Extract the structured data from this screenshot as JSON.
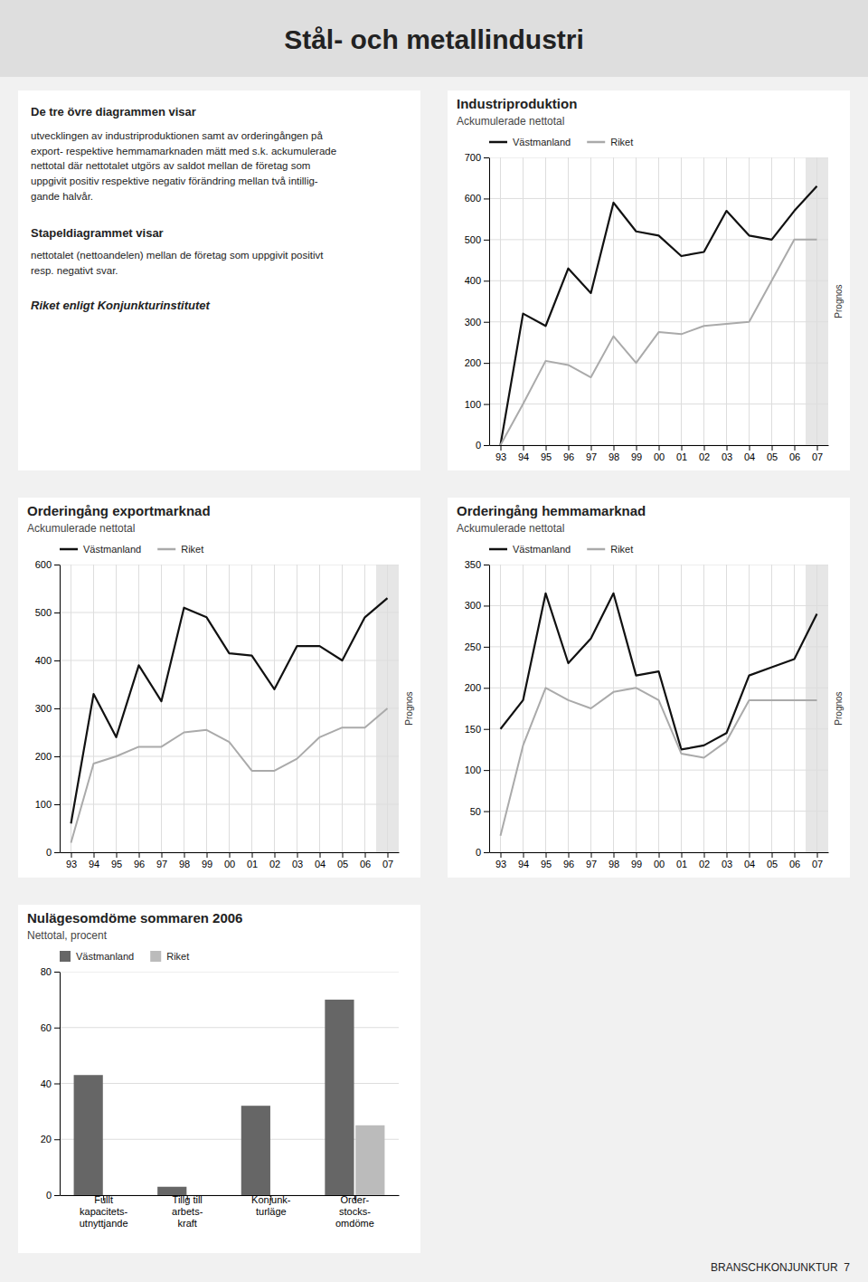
{
  "title": "Stål- och metallindustri",
  "annotations": [
    "De tre övre diagrammen visar",
    "utvecklingen av industriproduktionen samt av orderingången på\nexport- respektive hemmamarknaden mätt med s.k. ackumulerade\nnettotal där nettotalet utgörs av saldot mellan de företag som\nuppgivit positiv respektive negativ förändring mellan två intillig-\ngande halvår.",
    "Stapeldiagrammet visar",
    "nettotalet (nettoandelen) mellan de företag som uppgivit positivt\nresp. negativt svar.",
    "Riket enligt Konjunkturinstitutet",
    "BRANSCHKONJUNKTUR  7"
  ],
  "chart_data": [
    {
      "type": "line",
      "title": "Industriproduktion",
      "subtitle": "Ackumulerade nettotal",
      "categories": [
        "93",
        "94",
        "95",
        "96",
        "97",
        "98",
        "99",
        "00",
        "01",
        "02",
        "03",
        "04",
        "05",
        "06",
        "07"
      ],
      "ylim": [
        0,
        700
      ],
      "yticks": [
        0,
        100,
        200,
        300,
        400,
        500,
        600,
        700
      ],
      "grid": true,
      "legend": "upper left",
      "series": [
        {
          "name": "Västmanland",
          "color": "#111111",
          "values": [
            0,
            320,
            290,
            430,
            370,
            590,
            520,
            510,
            460,
            470,
            570,
            510,
            500,
            570,
            630
          ]
        },
        {
          "name": "Riket",
          "color": "#aaaaaa",
          "values": [
            0,
            100,
            205,
            195,
            165,
            265,
            200,
            275,
            270,
            290,
            295,
            300,
            400,
            500,
            500
          ]
        }
      ],
      "annotations": [
        {
          "text": "Prognos",
          "x": "07"
        }
      ]
    },
    {
      "type": "line",
      "title": "Orderingång exportmarknad",
      "subtitle": "Ackumulerade nettotal",
      "categories": [
        "93",
        "94",
        "95",
        "96",
        "97",
        "98",
        "99",
        "00",
        "01",
        "02",
        "03",
        "04",
        "05",
        "06",
        "07"
      ],
      "ylim": [
        0,
        600
      ],
      "yticks": [
        0,
        100,
        200,
        300,
        400,
        500,
        600
      ],
      "grid": true,
      "legend": "upper left",
      "series": [
        {
          "name": "Västmanland",
          "color": "#111111",
          "values": [
            60,
            330,
            240,
            390,
            315,
            510,
            490,
            415,
            410,
            340,
            430,
            430,
            400,
            490,
            530
          ]
        },
        {
          "name": "Riket",
          "color": "#aaaaaa",
          "values": [
            20,
            185,
            200,
            220,
            220,
            250,
            255,
            230,
            170,
            170,
            195,
            240,
            260,
            260,
            300
          ]
        }
      ],
      "annotations": [
        {
          "text": "Prognos",
          "x": "07"
        }
      ]
    },
    {
      "type": "line",
      "title": "Orderingång hemmamarknad",
      "subtitle": "Ackumulerade nettotal",
      "categories": [
        "93",
        "94",
        "95",
        "96",
        "97",
        "98",
        "99",
        "00",
        "01",
        "02",
        "03",
        "04",
        "05",
        "06",
        "07"
      ],
      "ylim": [
        0,
        350
      ],
      "yticks": [
        0,
        50,
        100,
        150,
        200,
        250,
        300,
        350
      ],
      "grid": true,
      "legend": "upper left",
      "series": [
        {
          "name": "Västmanland",
          "color": "#111111",
          "values": [
            150,
            185,
            315,
            230,
            260,
            315,
            215,
            220,
            125,
            130,
            145,
            215,
            225,
            235,
            290
          ]
        },
        {
          "name": "Riket",
          "color": "#aaaaaa",
          "values": [
            20,
            130,
            200,
            185,
            175,
            195,
            200,
            185,
            120,
            115,
            135,
            185,
            185,
            185,
            185
          ]
        }
      ],
      "annotations": [
        {
          "text": "Prognos",
          "x": "07"
        }
      ]
    },
    {
      "type": "bar",
      "title": "Nulägesomdöme sommaren 2006",
      "subtitle": "Nettotal, procent",
      "categories": [
        "Fullt\nkapacitets-\nutnyttjande",
        "Tillg till\narbets-\nkraft",
        "Konjunk-\nturläge",
        "Order-\nstocks-\nomdöme"
      ],
      "ylim": [
        0,
        80
      ],
      "yticks": [
        0,
        20,
        40,
        60,
        80
      ],
      "grid": "y",
      "legend": "upper left",
      "series": [
        {
          "name": "Västmanland",
          "color": "#666666",
          "values": [
            43,
            3,
            32,
            70
          ]
        },
        {
          "name": "Riket",
          "color": "#bbbbbb",
          "values": [
            null,
            null,
            null,
            25
          ]
        }
      ]
    }
  ]
}
